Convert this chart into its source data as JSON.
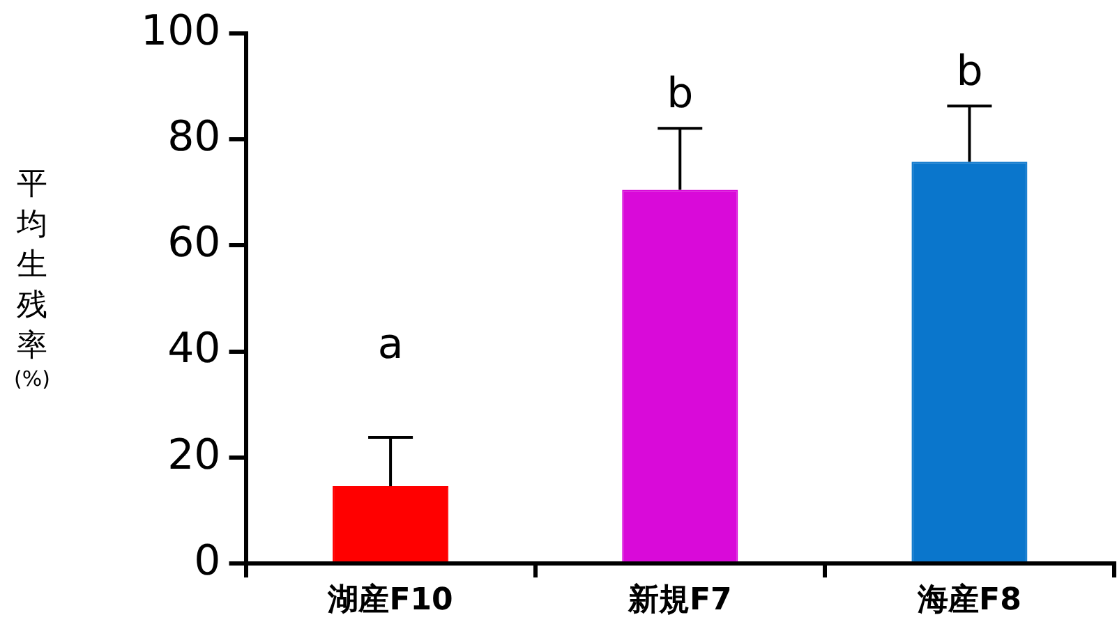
{
  "chart_data": {
    "type": "bar",
    "ylabel": "平均生残率(%)",
    "categories": [
      "湖産F10",
      "新規F7",
      "海産F8"
    ],
    "values": [
      14.6,
      70.5,
      75.8
    ],
    "colors": [
      "#ff0000",
      "#d90ad9",
      "#0a76cc"
    ],
    "errors": [
      [
        14.6,
        23.8
      ],
      [
        70.5,
        82.1
      ],
      [
        75.8,
        86.3
      ]
    ],
    "ylim": [
      0,
      100
    ],
    "yticks": [
      0,
      20,
      40,
      60,
      80,
      100
    ],
    "grid": false,
    "legend": false,
    "annotations": [
      "a",
      "b",
      "b"
    ]
  }
}
